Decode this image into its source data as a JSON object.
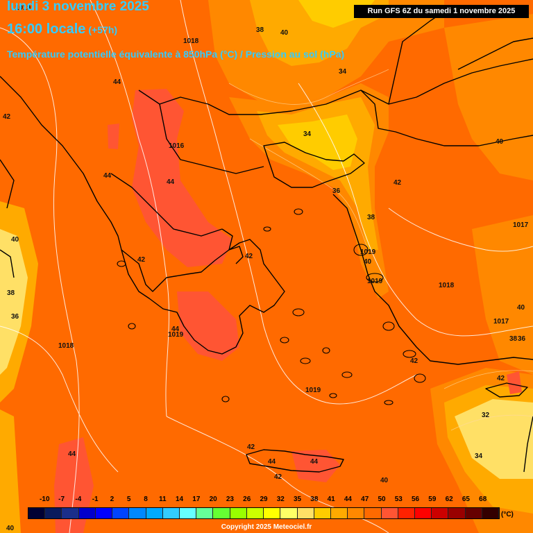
{
  "header": {
    "date_line": "lundi 3 novembre 2025",
    "time_line": "16:00 locale",
    "offset": "(+57h)",
    "parameter": "Température potentielle équivalente à 850hPa (°C) / Pression au sol (hPa)",
    "run": "Run GFS 6Z du samedi 1 novembre 2025"
  },
  "map_labels": {
    "pressure": [
      "1019",
      "1018",
      "1016",
      "1019",
      "1019",
      "1018",
      "1017",
      "1017",
      "1018",
      "1019",
      "1019"
    ],
    "temperature": [
      "38",
      "40",
      "34",
      "42",
      "44",
      "44",
      "44",
      "34",
      "36",
      "42",
      "40",
      "38",
      "40",
      "42",
      "42",
      "40",
      "38",
      "36",
      "40",
      "44",
      "42",
      "32",
      "34",
      "44",
      "44",
      "44",
      "42",
      "42",
      "40",
      "42",
      "40",
      "36",
      "38"
    ]
  },
  "legend": {
    "ticks": [
      "-10",
      "-7",
      "-4",
      "-1",
      "2",
      "5",
      "8",
      "11",
      "14",
      "17",
      "20",
      "23",
      "26",
      "29",
      "32",
      "35",
      "38",
      "41",
      "44",
      "47",
      "50",
      "53",
      "56",
      "59",
      "62",
      "65",
      "68"
    ],
    "colors": [
      "#000033",
      "#0a1a5c",
      "#1a2e8a",
      "#0000cc",
      "#0000ff",
      "#0044ff",
      "#0088ff",
      "#00aaff",
      "#33ccff",
      "#66ffff",
      "#66ff99",
      "#66ff33",
      "#99ff00",
      "#ccff00",
      "#ffff00",
      "#ffff66",
      "#ffe066",
      "#ffcc00",
      "#ffaa00",
      "#ff8800",
      "#ff6a00",
      "#ff5533",
      "#ff2200",
      "#ff0000",
      "#cc0000",
      "#990000",
      "#660000",
      "#330000"
    ],
    "unit": "(°C)"
  },
  "footer": {
    "copyright": "Copyright 2025 Meteociel.fr"
  }
}
